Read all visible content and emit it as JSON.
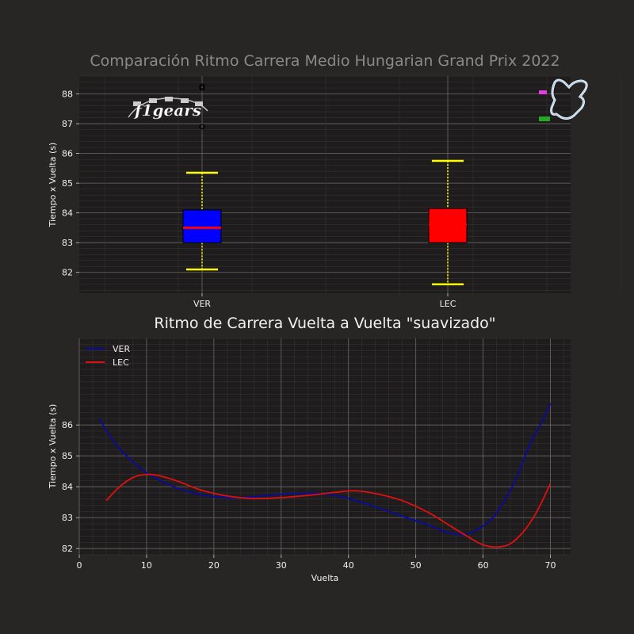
{
  "figure": {
    "background": "#282525",
    "axes_background": "#1e1c1c"
  },
  "logo": {
    "text": "f1gears"
  },
  "chart_data": [
    {
      "type": "box",
      "title": "Comparación Ritmo Carrera Medio Hungarian Grand Prix 2022",
      "xlabel": "",
      "ylabel": "Tiempo x Vuelta (s)",
      "ylim": [
        81.3,
        88.6
      ],
      "yticks": [
        82,
        83,
        84,
        85,
        86,
        87,
        88
      ],
      "grid": true,
      "categories": [
        "VER",
        "LEC"
      ],
      "series": [
        {
          "name": "VER",
          "color": "#0000ff",
          "whisker_low": 82.1,
          "q1": 83.0,
          "median": 83.5,
          "q3": 84.1,
          "whisker_high": 85.35,
          "outliers": [
            86.9,
            88.2,
            88.25
          ]
        },
        {
          "name": "LEC",
          "color": "#ff0000",
          "whisker_low": 81.6,
          "q1": 83.0,
          "median": 83.6,
          "q3": 84.15,
          "whisker_high": 85.75,
          "outliers": []
        }
      ],
      "median_color": "#ff0000",
      "whisker_color": "#ffff00"
    },
    {
      "type": "line",
      "title": "Ritmo de Carrera Vuelta a Vuelta \"suavizado\"",
      "xlabel": "Vuelta",
      "ylabel": "Tiempo x Vuelta (s)",
      "xlim": [
        0,
        73
      ],
      "ylim": [
        81.8,
        88.8
      ],
      "xticks": [
        0,
        10,
        20,
        30,
        40,
        50,
        60,
        70
      ],
      "yticks": [
        82,
        83,
        84,
        85,
        86
      ],
      "grid": true,
      "legend": "top-left",
      "series": [
        {
          "name": "VER",
          "color": "#0a0aa0",
          "x": [
            3,
            5,
            7,
            10,
            13,
            16,
            20,
            24,
            28,
            32,
            36,
            40,
            44,
            48,
            52,
            55,
            58,
            61,
            63,
            65,
            67,
            69,
            70
          ],
          "y": [
            86.2,
            85.5,
            85.0,
            84.45,
            84.1,
            83.85,
            83.68,
            83.65,
            83.72,
            83.78,
            83.78,
            83.62,
            83.35,
            83.05,
            82.75,
            82.5,
            82.5,
            82.9,
            83.5,
            84.3,
            85.4,
            86.2,
            86.7
          ]
        },
        {
          "name": "LEC",
          "color": "#e01010",
          "x": [
            4,
            6,
            8,
            10,
            12,
            15,
            18,
            22,
            26,
            30,
            34,
            38,
            41,
            44,
            48,
            52,
            55,
            58,
            60,
            62,
            64,
            66,
            68,
            70
          ],
          "y": [
            83.55,
            84.0,
            84.3,
            84.4,
            84.35,
            84.15,
            83.9,
            83.7,
            83.62,
            83.65,
            83.72,
            83.82,
            83.87,
            83.78,
            83.55,
            83.15,
            82.75,
            82.35,
            82.12,
            82.05,
            82.15,
            82.55,
            83.2,
            84.1
          ]
        }
      ]
    }
  ]
}
